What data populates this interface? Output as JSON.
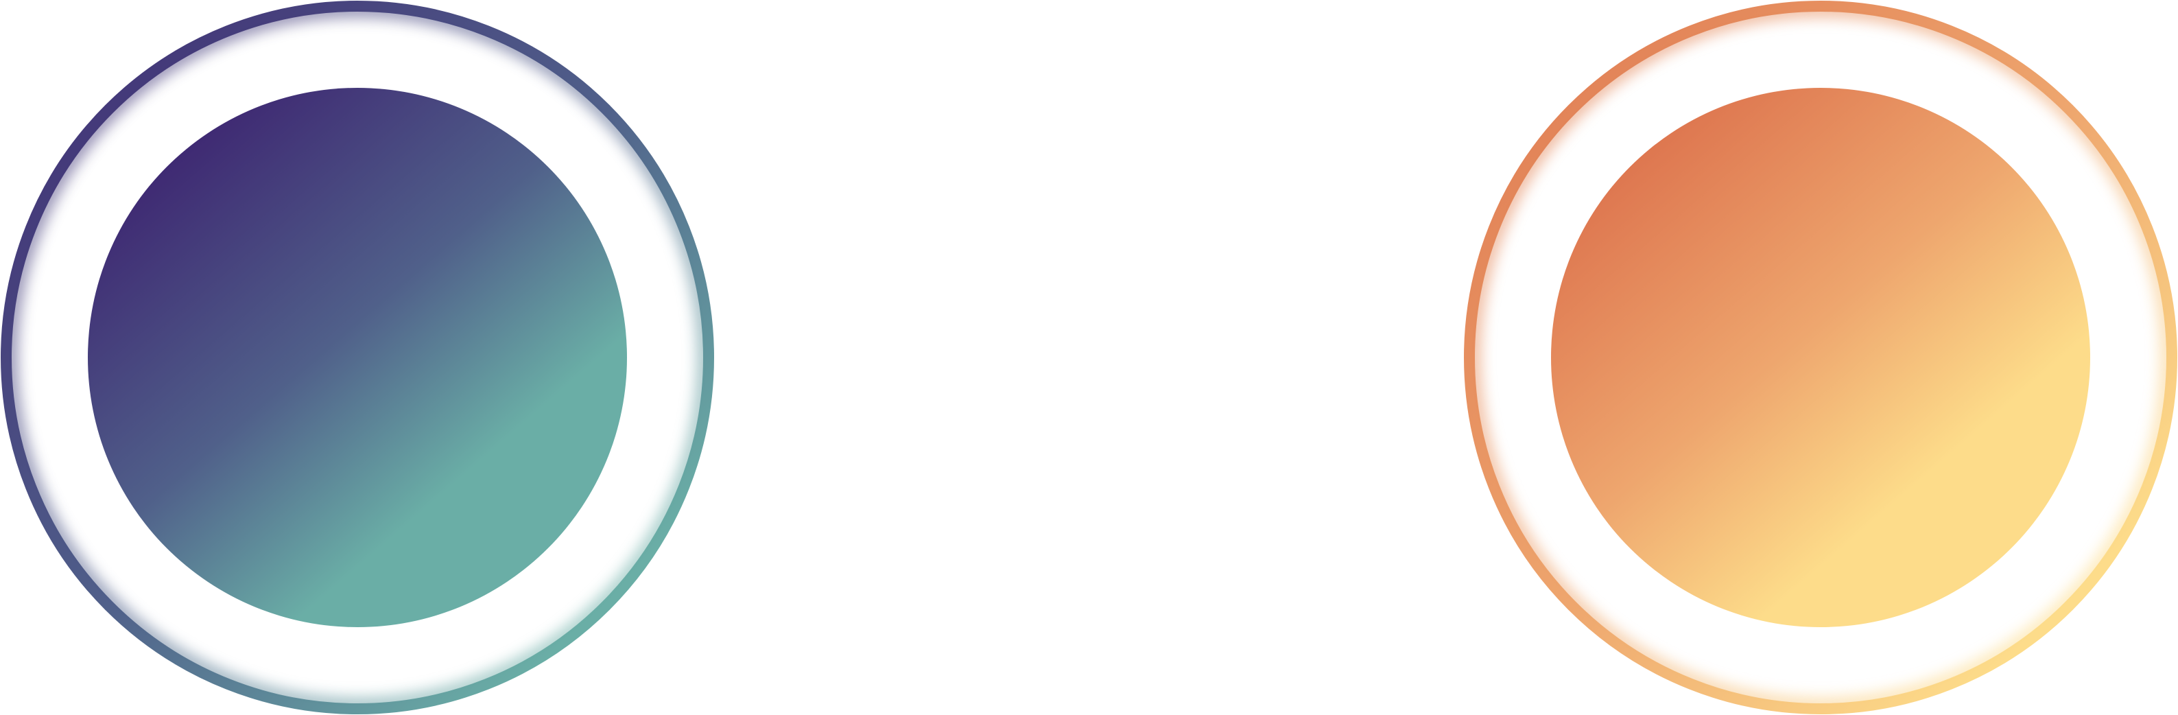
{
  "emblems": [
    {
      "id": "purple-teal",
      "colors": {
        "start": "#3f2a73",
        "mid": "#50608a",
        "end": "#6aaea6"
      }
    },
    {
      "id": "orange-yellow",
      "colors": {
        "start": "#de7750",
        "mid": "#eea66e",
        "end": "#fddc8a"
      }
    }
  ]
}
